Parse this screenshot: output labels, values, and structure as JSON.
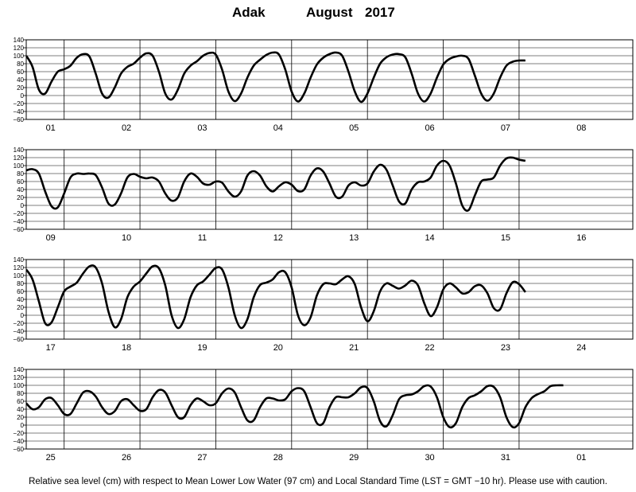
{
  "title": {
    "station": "Adak",
    "month": "August",
    "year": "2017"
  },
  "footer": "Relative sea level (cm) with respect to Mean Lower Low Water (97 cm) and Local Standard Time (LST = GMT −10 hr). Please use with caution.",
  "chart_data": {
    "type": "line",
    "title": "Adak August 2017",
    "ylabel": "",
    "ylim": [
      -60,
      140
    ],
    "yticks": [
      140,
      120,
      100,
      80,
      60,
      40,
      20,
      0,
      -20,
      -40,
      -60
    ],
    "ytick_labels": [
      "140",
      "120",
      "100",
      "80",
      "60",
      "40",
      "20",
      "0",
      "−20",
      "−40",
      "−60"
    ],
    "grid": true,
    "line_color": "#000000",
    "panels": [
      {
        "days": [
          "01",
          "02",
          "03",
          "04",
          "05",
          "06",
          "07",
          "08"
        ],
        "points": [
          [
            0,
            100
          ],
          [
            2,
            72
          ],
          [
            4,
            15
          ],
          [
            6,
            5
          ],
          [
            8,
            35
          ],
          [
            10,
            60
          ],
          [
            12,
            66
          ],
          [
            14,
            75
          ],
          [
            16,
            95
          ],
          [
            18,
            104
          ],
          [
            20,
            98
          ],
          [
            22,
            55
          ],
          [
            24,
            5
          ],
          [
            26,
            -5
          ],
          [
            28,
            20
          ],
          [
            30,
            55
          ],
          [
            32,
            72
          ],
          [
            34,
            80
          ],
          [
            36,
            95
          ],
          [
            38,
            106
          ],
          [
            40,
            100
          ],
          [
            42,
            60
          ],
          [
            44,
            5
          ],
          [
            46,
            -10
          ],
          [
            48,
            15
          ],
          [
            50,
            55
          ],
          [
            52,
            75
          ],
          [
            54,
            86
          ],
          [
            56,
            100
          ],
          [
            58,
            107
          ],
          [
            60,
            103
          ],
          [
            62,
            65
          ],
          [
            64,
            10
          ],
          [
            66,
            -14
          ],
          [
            68,
            5
          ],
          [
            70,
            45
          ],
          [
            72,
            75
          ],
          [
            74,
            90
          ],
          [
            76,
            102
          ],
          [
            78,
            108
          ],
          [
            80,
            103
          ],
          [
            82,
            65
          ],
          [
            84,
            10
          ],
          [
            86,
            -15
          ],
          [
            88,
            5
          ],
          [
            90,
            45
          ],
          [
            92,
            78
          ],
          [
            94,
            95
          ],
          [
            96,
            104
          ],
          [
            98,
            108
          ],
          [
            100,
            100
          ],
          [
            102,
            60
          ],
          [
            104,
            10
          ],
          [
            106,
            -16
          ],
          [
            108,
            5
          ],
          [
            110,
            45
          ],
          [
            112,
            80
          ],
          [
            114,
            96
          ],
          [
            116,
            103
          ],
          [
            118,
            104
          ],
          [
            120,
            96
          ],
          [
            122,
            55
          ],
          [
            124,
            5
          ],
          [
            126,
            -15
          ],
          [
            128,
            5
          ],
          [
            130,
            45
          ],
          [
            132,
            78
          ],
          [
            134,
            92
          ],
          [
            136,
            98
          ],
          [
            138,
            100
          ],
          [
            140,
            92
          ],
          [
            142,
            50
          ],
          [
            144,
            5
          ],
          [
            146,
            -13
          ],
          [
            148,
            5
          ],
          [
            150,
            45
          ],
          [
            152,
            75
          ],
          [
            154,
            85
          ],
          [
            156,
            88
          ],
          [
            158,
            88
          ]
        ]
      },
      {
        "days": [
          "09",
          "10",
          "11",
          "12",
          "13",
          "14",
          "15",
          "16"
        ],
        "points": [
          [
            0,
            88
          ],
          [
            2,
            91
          ],
          [
            4,
            80
          ],
          [
            6,
            35
          ],
          [
            8,
            -2
          ],
          [
            10,
            -5
          ],
          [
            12,
            30
          ],
          [
            14,
            70
          ],
          [
            16,
            80
          ],
          [
            18,
            79
          ],
          [
            20,
            80
          ],
          [
            22,
            76
          ],
          [
            24,
            45
          ],
          [
            26,
            5
          ],
          [
            28,
            2
          ],
          [
            30,
            30
          ],
          [
            32,
            70
          ],
          [
            34,
            79
          ],
          [
            36,
            72
          ],
          [
            38,
            68
          ],
          [
            40,
            70
          ],
          [
            42,
            60
          ],
          [
            44,
            30
          ],
          [
            46,
            12
          ],
          [
            48,
            20
          ],
          [
            50,
            60
          ],
          [
            52,
            80
          ],
          [
            54,
            72
          ],
          [
            56,
            55
          ],
          [
            58,
            52
          ],
          [
            60,
            60
          ],
          [
            62,
            57
          ],
          [
            64,
            35
          ],
          [
            66,
            22
          ],
          [
            68,
            35
          ],
          [
            70,
            75
          ],
          [
            72,
            86
          ],
          [
            74,
            75
          ],
          [
            76,
            48
          ],
          [
            78,
            35
          ],
          [
            80,
            48
          ],
          [
            82,
            58
          ],
          [
            84,
            52
          ],
          [
            86,
            36
          ],
          [
            88,
            40
          ],
          [
            90,
            75
          ],
          [
            92,
            93
          ],
          [
            94,
            85
          ],
          [
            96,
            55
          ],
          [
            98,
            22
          ],
          [
            100,
            22
          ],
          [
            102,
            50
          ],
          [
            104,
            58
          ],
          [
            106,
            50
          ],
          [
            108,
            55
          ],
          [
            110,
            85
          ],
          [
            112,
            102
          ],
          [
            114,
            90
          ],
          [
            116,
            50
          ],
          [
            118,
            10
          ],
          [
            120,
            5
          ],
          [
            122,
            40
          ],
          [
            124,
            58
          ],
          [
            126,
            60
          ],
          [
            128,
            70
          ],
          [
            130,
            100
          ],
          [
            132,
            112
          ],
          [
            134,
            100
          ],
          [
            136,
            55
          ],
          [
            138,
            0
          ],
          [
            140,
            -12
          ],
          [
            142,
            25
          ],
          [
            144,
            60
          ],
          [
            146,
            65
          ],
          [
            148,
            70
          ],
          [
            150,
            100
          ],
          [
            152,
            118
          ],
          [
            154,
            120
          ],
          [
            156,
            115
          ],
          [
            158,
            112
          ]
        ]
      },
      {
        "days": [
          "17",
          "18",
          "19",
          "20",
          "21",
          "22",
          "23",
          "24"
        ],
        "points": [
          [
            0,
            115
          ],
          [
            2,
            90
          ],
          [
            4,
            35
          ],
          [
            6,
            -20
          ],
          [
            8,
            -18
          ],
          [
            10,
            20
          ],
          [
            12,
            60
          ],
          [
            14,
            72
          ],
          [
            16,
            82
          ],
          [
            18,
            105
          ],
          [
            20,
            123
          ],
          [
            22,
            120
          ],
          [
            24,
            80
          ],
          [
            26,
            10
          ],
          [
            28,
            -30
          ],
          [
            30,
            -10
          ],
          [
            32,
            45
          ],
          [
            34,
            72
          ],
          [
            36,
            85
          ],
          [
            38,
            105
          ],
          [
            40,
            123
          ],
          [
            42,
            118
          ],
          [
            44,
            75
          ],
          [
            46,
            0
          ],
          [
            48,
            -32
          ],
          [
            50,
            -10
          ],
          [
            52,
            45
          ],
          [
            54,
            75
          ],
          [
            56,
            85
          ],
          [
            58,
            102
          ],
          [
            60,
            119
          ],
          [
            62,
            115
          ],
          [
            64,
            70
          ],
          [
            66,
            0
          ],
          [
            68,
            -32
          ],
          [
            70,
            -10
          ],
          [
            72,
            45
          ],
          [
            74,
            76
          ],
          [
            76,
            82
          ],
          [
            78,
            90
          ],
          [
            80,
            108
          ],
          [
            82,
            108
          ],
          [
            84,
            70
          ],
          [
            86,
            0
          ],
          [
            88,
            -25
          ],
          [
            90,
            -5
          ],
          [
            92,
            50
          ],
          [
            94,
            78
          ],
          [
            96,
            80
          ],
          [
            98,
            78
          ],
          [
            100,
            90
          ],
          [
            102,
            98
          ],
          [
            104,
            78
          ],
          [
            106,
            20
          ],
          [
            108,
            -15
          ],
          [
            110,
            10
          ],
          [
            112,
            60
          ],
          [
            114,
            80
          ],
          [
            116,
            74
          ],
          [
            118,
            67
          ],
          [
            120,
            75
          ],
          [
            122,
            87
          ],
          [
            124,
            75
          ],
          [
            126,
            30
          ],
          [
            128,
            -2
          ],
          [
            130,
            20
          ],
          [
            132,
            65
          ],
          [
            134,
            80
          ],
          [
            136,
            70
          ],
          [
            138,
            55
          ],
          [
            140,
            58
          ],
          [
            142,
            73
          ],
          [
            144,
            75
          ],
          [
            146,
            55
          ],
          [
            148,
            18
          ],
          [
            150,
            15
          ],
          [
            152,
            55
          ],
          [
            154,
            83
          ],
          [
            156,
            78
          ],
          [
            158,
            58
          ]
        ]
      },
      {
        "days": [
          "25",
          "26",
          "27",
          "28",
          "29",
          "30",
          "31",
          "01"
        ],
        "points": [
          [
            0,
            55
          ],
          [
            2,
            40
          ],
          [
            4,
            45
          ],
          [
            6,
            65
          ],
          [
            8,
            68
          ],
          [
            10,
            50
          ],
          [
            12,
            28
          ],
          [
            14,
            28
          ],
          [
            16,
            55
          ],
          [
            18,
            82
          ],
          [
            20,
            85
          ],
          [
            22,
            72
          ],
          [
            24,
            45
          ],
          [
            26,
            28
          ],
          [
            28,
            35
          ],
          [
            30,
            60
          ],
          [
            32,
            65
          ],
          [
            34,
            50
          ],
          [
            36,
            36
          ],
          [
            38,
            40
          ],
          [
            40,
            70
          ],
          [
            42,
            88
          ],
          [
            44,
            82
          ],
          [
            46,
            50
          ],
          [
            48,
            20
          ],
          [
            50,
            20
          ],
          [
            52,
            50
          ],
          [
            54,
            67
          ],
          [
            56,
            60
          ],
          [
            58,
            50
          ],
          [
            60,
            55
          ],
          [
            62,
            80
          ],
          [
            64,
            92
          ],
          [
            66,
            82
          ],
          [
            68,
            45
          ],
          [
            70,
            12
          ],
          [
            72,
            12
          ],
          [
            74,
            45
          ],
          [
            76,
            67
          ],
          [
            78,
            67
          ],
          [
            80,
            62
          ],
          [
            82,
            65
          ],
          [
            84,
            85
          ],
          [
            86,
            93
          ],
          [
            88,
            85
          ],
          [
            90,
            45
          ],
          [
            92,
            5
          ],
          [
            94,
            5
          ],
          [
            96,
            45
          ],
          [
            98,
            70
          ],
          [
            100,
            70
          ],
          [
            102,
            70
          ],
          [
            104,
            80
          ],
          [
            106,
            95
          ],
          [
            108,
            93
          ],
          [
            110,
            60
          ],
          [
            112,
            10
          ],
          [
            114,
            -3
          ],
          [
            116,
            25
          ],
          [
            118,
            65
          ],
          [
            120,
            75
          ],
          [
            122,
            77
          ],
          [
            124,
            85
          ],
          [
            126,
            98
          ],
          [
            128,
            97
          ],
          [
            130,
            70
          ],
          [
            132,
            20
          ],
          [
            134,
            -5
          ],
          [
            136,
            5
          ],
          [
            138,
            45
          ],
          [
            140,
            68
          ],
          [
            142,
            75
          ],
          [
            144,
            85
          ],
          [
            146,
            98
          ],
          [
            148,
            96
          ],
          [
            150,
            70
          ],
          [
            152,
            20
          ],
          [
            154,
            -5
          ],
          [
            156,
            5
          ],
          [
            158,
            45
          ],
          [
            160,
            68
          ],
          [
            162,
            78
          ],
          [
            164,
            85
          ],
          [
            166,
            98
          ],
          [
            168,
            100
          ],
          [
            170,
            100
          ]
        ]
      }
    ]
  }
}
